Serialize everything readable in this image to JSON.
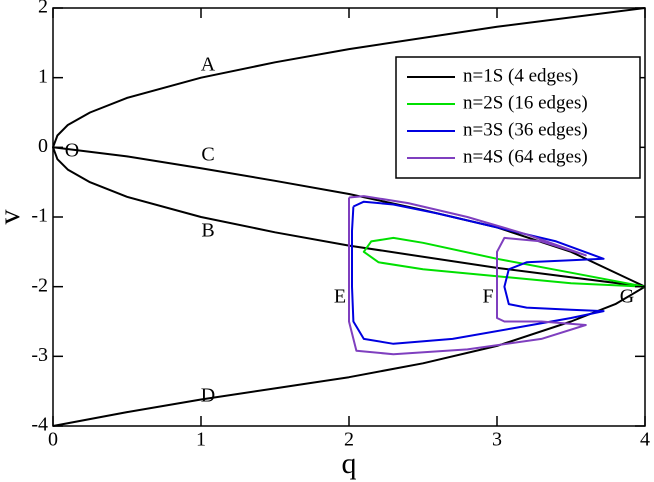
{
  "chart_data": {
    "type": "line",
    "xlabel": "q",
    "ylabel": "v",
    "xlim": [
      0,
      4
    ],
    "ylim": [
      -4,
      2
    ],
    "xticks": [
      0,
      1,
      2,
      3,
      4
    ],
    "yticks": [
      -4,
      -3,
      -2,
      -1,
      0,
      1,
      2
    ],
    "legend": "upper right",
    "annotations": [
      "A",
      "O",
      "C",
      "B",
      "D",
      "E",
      "F",
      "G"
    ],
    "series": [
      {
        "name": "n=1S (4 edges)",
        "color": "#000000",
        "x": [
          4,
          3,
          2,
          1.5,
          1,
          0.5,
          0.25,
          0.1,
          0.03,
          0,
          0.03,
          0.1,
          0.25,
          0.5,
          1,
          1.5,
          2,
          3,
          4,
          null,
          0,
          0.5,
          1,
          1.5,
          2,
          2.5,
          3,
          3.5,
          4,
          null,
          0,
          0.5,
          1,
          1.5,
          2,
          2.5,
          3,
          3.5,
          3.8,
          4
        ],
        "values": [
          2,
          1.73,
          1.41,
          1.22,
          1,
          0.71,
          0.5,
          0.32,
          0.17,
          0,
          -0.17,
          -0.32,
          -0.5,
          -0.71,
          -1,
          -1.22,
          -1.41,
          -1.73,
          -2,
          null,
          0,
          -0.13,
          -0.3,
          -0.48,
          -0.67,
          -0.9,
          -1.15,
          -1.5,
          -2,
          null,
          -4,
          -3.8,
          -3.62,
          -3.46,
          -3.3,
          -3.1,
          -2.85,
          -2.5,
          -2.25,
          -2
        ]
      },
      {
        "name": "n=2S (16 edges)",
        "color": "#00e000",
        "x": [
          4,
          3.5,
          3,
          2.5,
          2.3,
          2.15,
          2.1,
          2.2,
          2.5,
          3,
          3.5,
          4
        ],
        "values": [
          -2,
          -1.8,
          -1.6,
          -1.37,
          -1.3,
          -1.35,
          -1.5,
          -1.65,
          -1.75,
          -1.85,
          -1.95,
          -2
        ]
      },
      {
        "name": "n=3S (36 edges)",
        "color": "#0000e0",
        "x": [
          2.03,
          2.1,
          2.3,
          2.6,
          3,
          3.4,
          3.72,
          3.5,
          3.2,
          3.08,
          3.05,
          3.08,
          3.2,
          3.5,
          3.72,
          3.5,
          3.1,
          2.7,
          2.3,
          2.1,
          2.03,
          2.02,
          2.02,
          2.03
        ],
        "values": [
          -0.85,
          -0.78,
          -0.82,
          -0.95,
          -1.15,
          -1.35,
          -1.6,
          -1.62,
          -1.65,
          -1.75,
          -2,
          -2.25,
          -2.3,
          -2.33,
          -2.35,
          -2.45,
          -2.6,
          -2.75,
          -2.82,
          -2.75,
          -2.5,
          -2,
          -1.2,
          -0.85
        ]
      },
      {
        "name": "n=4S (64 edges)",
        "color": "#7f3fbf",
        "x": [
          2,
          2.1,
          2.4,
          2.8,
          3.2,
          3.6,
          3.3,
          3.05,
          3,
          3,
          3,
          3.05,
          3.3,
          3.6,
          3.3,
          2.8,
          2.3,
          2.05,
          2,
          2,
          2
        ],
        "values": [
          -0.72,
          -0.7,
          -0.8,
          -1,
          -1.25,
          -1.55,
          -1.35,
          -1.3,
          -1.5,
          -2,
          -2.45,
          -2.5,
          -2.5,
          -2.55,
          -2.75,
          -2.9,
          -2.97,
          -2.92,
          -2.5,
          -1.5,
          -0.72
        ]
      }
    ]
  }
}
